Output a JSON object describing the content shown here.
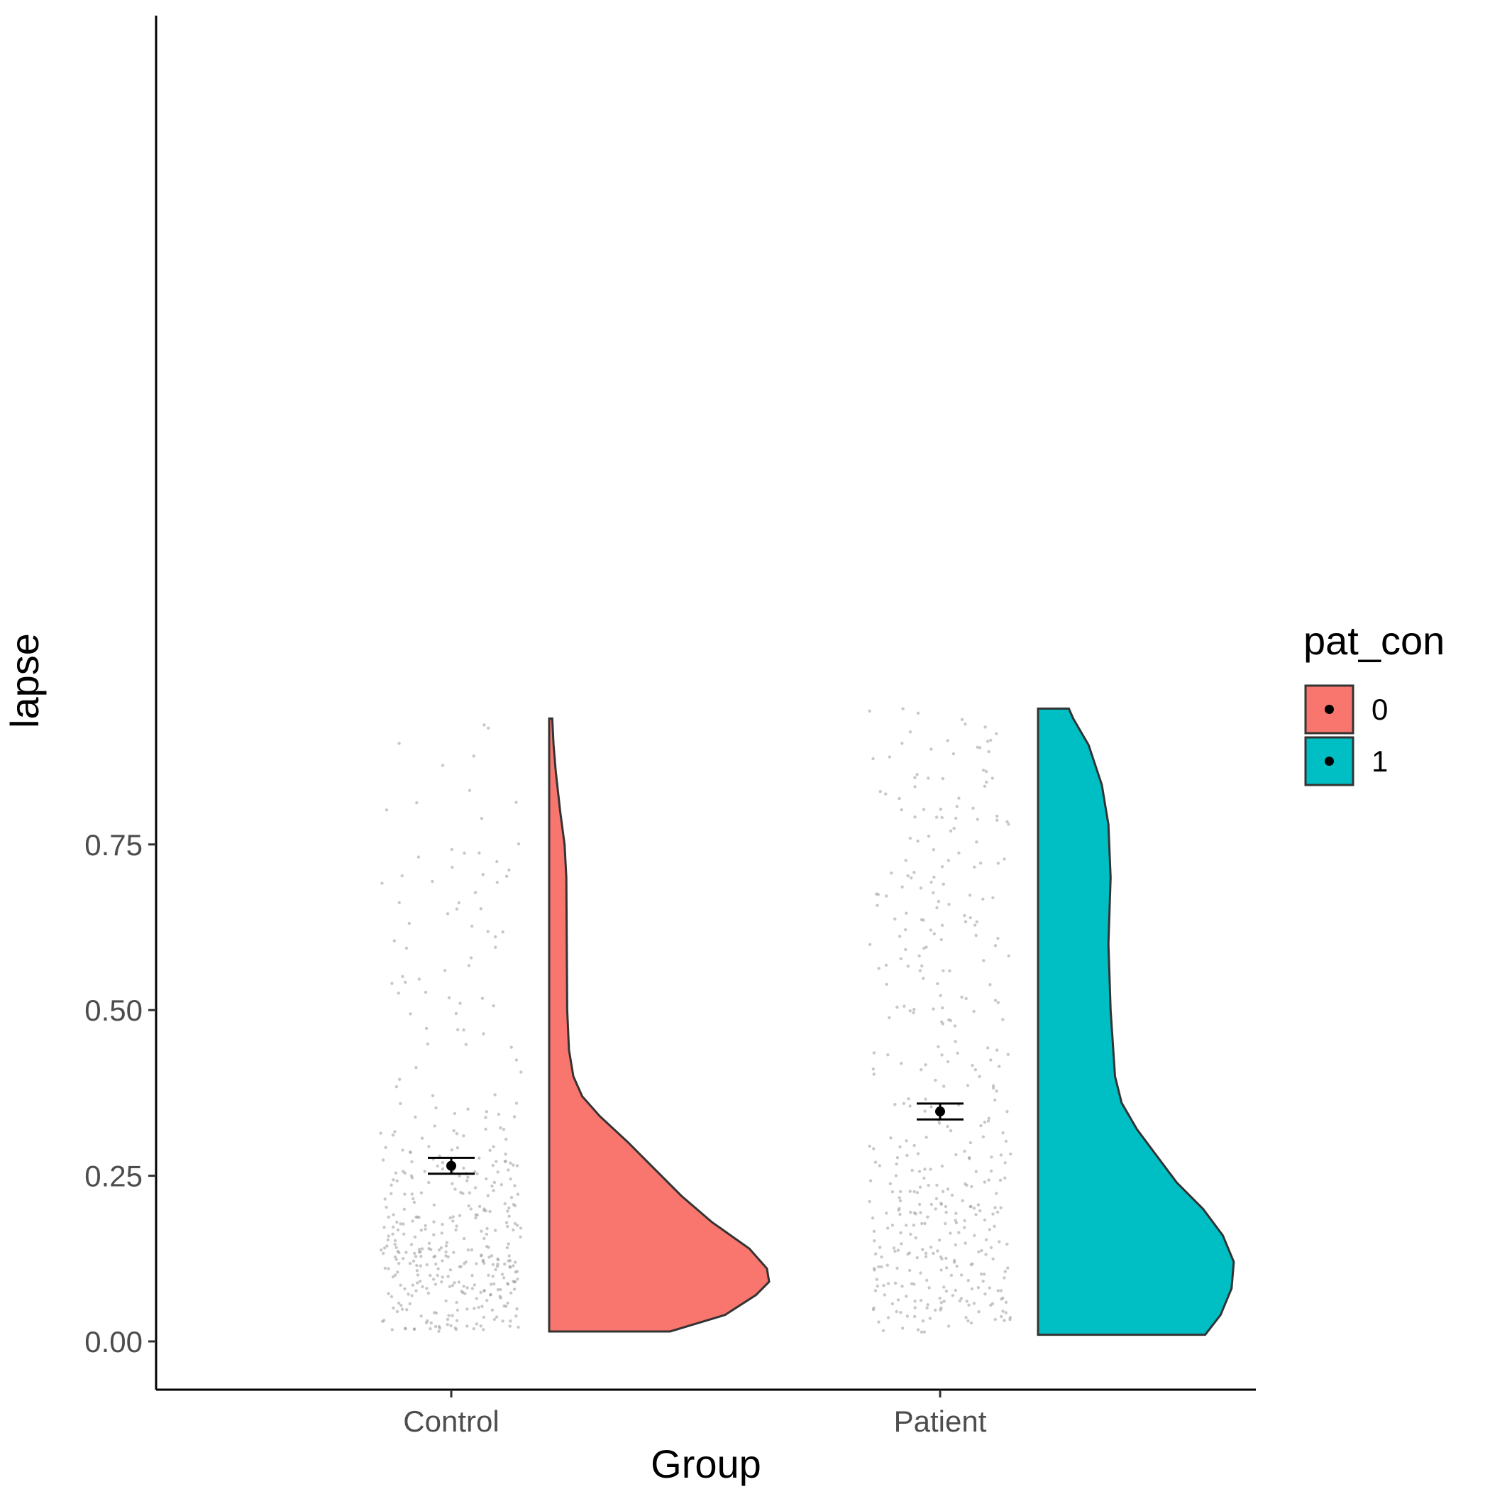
{
  "chart_data": {
    "type": "raincloud",
    "xlabel": "Group",
    "ylabel": "lapse",
    "categories": [
      "Control",
      "Patient"
    ],
    "ylim": [
      -0.03,
      0.995
    ],
    "yticks": [
      {
        "value": 0.0,
        "label": "0.00"
      },
      {
        "value": 0.25,
        "label": "0.25"
      },
      {
        "value": 0.5,
        "label": "0.50"
      },
      {
        "value": 0.75,
        "label": "0.75"
      }
    ],
    "legend": {
      "title": "pat_con",
      "position": "right",
      "entries": [
        {
          "label": "0",
          "color": "#F8766D"
        },
        {
          "label": "1",
          "color": "#00BFC4"
        }
      ]
    },
    "grid": false,
    "series": [
      {
        "category": "Control",
        "group": "0",
        "color": "#F8766D",
        "mean": 0.265,
        "ci_low": 0.253,
        "ci_high": 0.277,
        "density": [
          [
            0.015,
            0.55
          ],
          [
            0.04,
            0.8
          ],
          [
            0.07,
            0.94
          ],
          [
            0.09,
            1.0
          ],
          [
            0.11,
            0.99
          ],
          [
            0.14,
            0.91
          ],
          [
            0.18,
            0.74
          ],
          [
            0.22,
            0.6
          ],
          [
            0.26,
            0.48
          ],
          [
            0.3,
            0.36
          ],
          [
            0.34,
            0.23
          ],
          [
            0.37,
            0.15
          ],
          [
            0.4,
            0.11
          ],
          [
            0.44,
            0.09
          ],
          [
            0.5,
            0.082
          ],
          [
            0.6,
            0.08
          ],
          [
            0.7,
            0.078
          ],
          [
            0.75,
            0.07
          ],
          [
            0.8,
            0.05
          ],
          [
            0.86,
            0.03
          ],
          [
            0.9,
            0.02
          ],
          [
            0.94,
            0.014
          ]
        ]
      },
      {
        "category": "Patient",
        "group": "1",
        "color": "#00BFC4",
        "mean": 0.347,
        "ci_low": 0.335,
        "ci_high": 0.359,
        "density": [
          [
            0.01,
            0.76
          ],
          [
            0.04,
            0.83
          ],
          [
            0.08,
            0.88
          ],
          [
            0.12,
            0.89
          ],
          [
            0.16,
            0.84
          ],
          [
            0.2,
            0.75
          ],
          [
            0.24,
            0.63
          ],
          [
            0.28,
            0.54
          ],
          [
            0.32,
            0.45
          ],
          [
            0.36,
            0.38
          ],
          [
            0.4,
            0.35
          ],
          [
            0.45,
            0.34
          ],
          [
            0.5,
            0.33
          ],
          [
            0.6,
            0.32
          ],
          [
            0.7,
            0.33
          ],
          [
            0.78,
            0.32
          ],
          [
            0.84,
            0.29
          ],
          [
            0.9,
            0.23
          ],
          [
            0.94,
            0.16
          ],
          [
            0.955,
            0.14
          ]
        ]
      }
    ]
  }
}
